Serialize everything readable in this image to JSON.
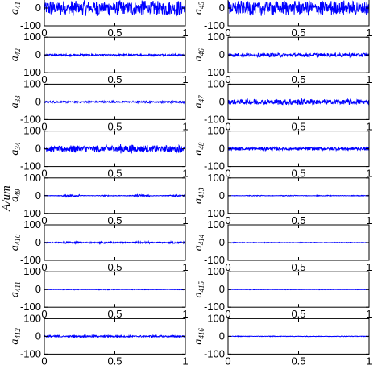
{
  "chart_data": {
    "type": "line",
    "ylabel": "A/um",
    "xticks": [
      "0",
      "0.5",
      "1"
    ],
    "yticks": [
      "100",
      "0",
      "-100"
    ],
    "xlim": [
      0,
      1
    ],
    "ylim": [
      -100,
      100
    ],
    "series_color": "#0000ff",
    "panels": [
      {
        "name": "a",
        "sub": "41",
        "col": 0,
        "amp": 45,
        "env": [
          1,
          1,
          1,
          1,
          1,
          1,
          1,
          1
        ]
      },
      {
        "name": "a",
        "sub": "42",
        "col": 0,
        "amp": 6,
        "env": [
          1,
          0.9,
          1,
          0.8,
          1,
          0.9,
          1,
          1
        ]
      },
      {
        "name": "a",
        "sub": "33",
        "col": 0,
        "amp": 6,
        "env": [
          1,
          0.8,
          1,
          0.9,
          0.8,
          1,
          0.9,
          1
        ]
      },
      {
        "name": "a",
        "sub": "34",
        "col": 0,
        "amp": 22,
        "env": [
          0.8,
          1,
          0.9,
          1,
          1.2,
          1,
          0.9,
          1
        ]
      },
      {
        "name": "a",
        "sub": "49",
        "col": 0,
        "amp": 8,
        "env": [
          0.2,
          1,
          0.2,
          0.4,
          0.2,
          1,
          0.2,
          0.6
        ]
      },
      {
        "name": "a",
        "sub": "410",
        "col": 0,
        "amp": 6,
        "env": [
          0.6,
          1,
          0.6,
          1,
          0.6,
          1,
          0.6,
          1
        ]
      },
      {
        "name": "a",
        "sub": "411",
        "col": 0,
        "amp": 4,
        "env": [
          0.3,
          0.5,
          0.3,
          0.6,
          0.3,
          0.5,
          0.3,
          0.5
        ]
      },
      {
        "name": "a",
        "sub": "412",
        "col": 0,
        "amp": 6,
        "env": [
          1,
          0.8,
          1,
          0.9,
          1,
          0.8,
          1,
          0.9
        ]
      },
      {
        "name": "a",
        "sub": "45",
        "col": 1,
        "amp": 45,
        "env": [
          1,
          1,
          1,
          1,
          1,
          1,
          1,
          1
        ]
      },
      {
        "name": "a",
        "sub": "46",
        "col": 1,
        "amp": 12,
        "env": [
          1,
          0.9,
          1,
          0.8,
          1,
          0.9,
          1,
          1
        ]
      },
      {
        "name": "a",
        "sub": "47",
        "col": 1,
        "amp": 18,
        "env": [
          0.8,
          1,
          0.9,
          1.2,
          1,
          0.9,
          1,
          0.9
        ]
      },
      {
        "name": "a",
        "sub": "48",
        "col": 1,
        "amp": 10,
        "env": [
          1,
          0.9,
          1,
          0.8,
          1,
          0.9,
          1,
          1
        ]
      },
      {
        "name": "a",
        "sub": "413",
        "col": 1,
        "amp": 4,
        "env": [
          0.3,
          0.6,
          0.3,
          0.6,
          0.3,
          0.6,
          0.3,
          0.6
        ]
      },
      {
        "name": "a",
        "sub": "414",
        "col": 1,
        "amp": 4,
        "env": [
          0.6,
          0.4,
          0.6,
          0.4,
          0.6,
          0.4,
          0.6,
          0.4
        ]
      },
      {
        "name": "a",
        "sub": "415",
        "col": 1,
        "amp": 3,
        "env": [
          0.3,
          0.5,
          0.3,
          0.5,
          0.3,
          0.5,
          0.3,
          0.5
        ]
      },
      {
        "name": "a",
        "sub": "416",
        "col": 1,
        "amp": 4,
        "env": [
          0.5,
          0.4,
          0.5,
          0.4,
          0.5,
          0.4,
          0.5,
          0.4
        ]
      }
    ]
  }
}
